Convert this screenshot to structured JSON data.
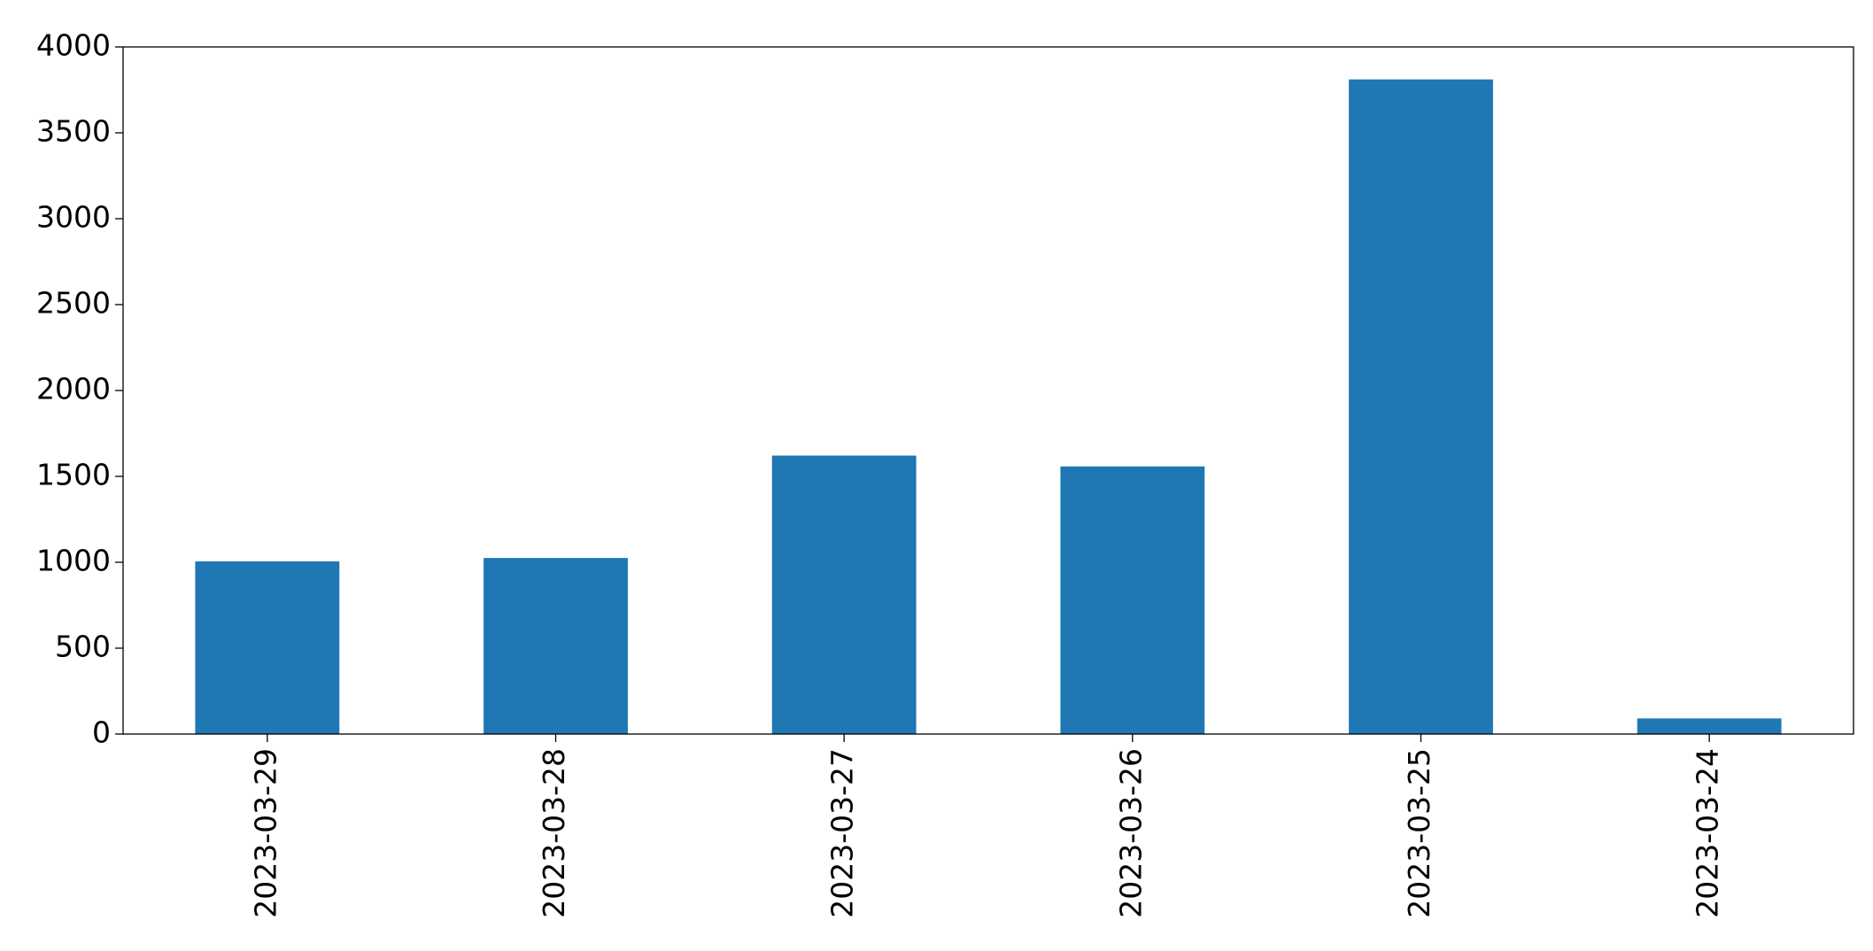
{
  "chart_data": {
    "type": "bar",
    "categories": [
      "2023-03-29",
      "2023-03-28",
      "2023-03-27",
      "2023-03-26",
      "2023-03-25",
      "2023-03-24"
    ],
    "values": [
      1005,
      1025,
      1621,
      1558,
      3811,
      91
    ],
    "color": "#1f77b4",
    "ylim": [
      0,
      4000
    ],
    "yticks": [
      0,
      500,
      1000,
      1500,
      2000,
      2500,
      3000,
      3500,
      4000
    ],
    "grid": false
  }
}
